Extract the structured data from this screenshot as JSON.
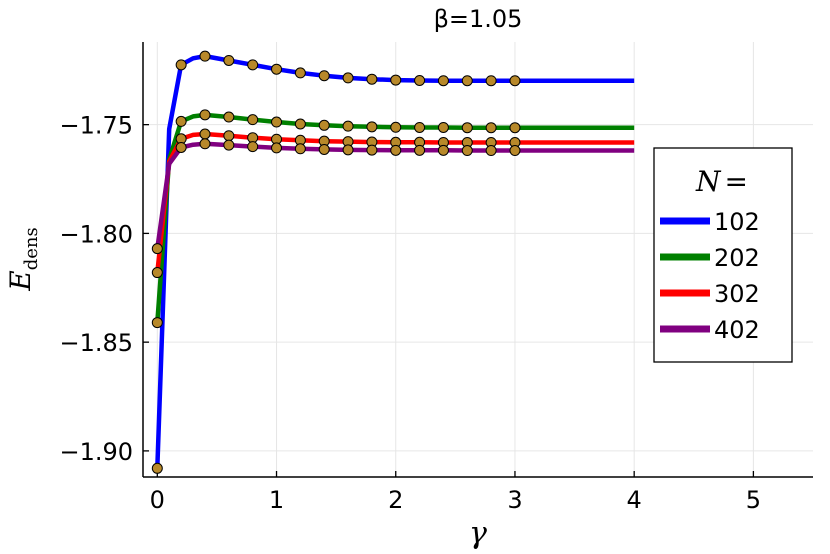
{
  "chart_data": {
    "type": "line",
    "title": "β=1.05",
    "xlabel": "γ",
    "ylabel_main": "E",
    "ylabel_sub": "dens",
    "xlim": [
      -0.12,
      5.5
    ],
    "ylim": [
      -1.912,
      -1.712
    ],
    "xticks": [
      0,
      1,
      2,
      3,
      4,
      5
    ],
    "yticks": [
      -1.9,
      -1.85,
      -1.8,
      -1.75
    ],
    "ytick_labels": [
      "−1.90",
      "−1.85",
      "−1.80",
      "−1.75"
    ],
    "grid": true,
    "legend_title_main": "N",
    "legend_title_suffix": "=",
    "legend_position": "right",
    "marker_color": "#b8892a",
    "series": [
      {
        "name": "102",
        "color": "#0000ff",
        "line_x": [
          0,
          0.1,
          0.2,
          0.3,
          0.4,
          0.6,
          0.8,
          1.0,
          1.2,
          1.4,
          1.6,
          1.8,
          2.0,
          2.2,
          2.4,
          2.6,
          2.8,
          3.0,
          3.5,
          4.0
        ],
        "line_y": [
          -1.908,
          -1.752,
          -1.7225,
          -1.7195,
          -1.7185,
          -1.7205,
          -1.7225,
          -1.7245,
          -1.7262,
          -1.7275,
          -1.7285,
          -1.7291,
          -1.7295,
          -1.7297,
          -1.7298,
          -1.7298,
          -1.7298,
          -1.7298,
          -1.7298,
          -1.7298
        ],
        "marker_x": [
          0,
          0.2,
          0.4,
          0.6,
          0.8,
          1.0,
          1.2,
          1.4,
          1.6,
          1.8,
          2.0,
          2.2,
          2.4,
          2.6,
          2.8,
          3.0
        ],
        "marker_y": [
          -1.908,
          -1.7225,
          -1.7185,
          -1.7205,
          -1.7225,
          -1.7245,
          -1.7262,
          -1.7275,
          -1.7285,
          -1.7291,
          -1.7295,
          -1.7297,
          -1.7298,
          -1.7298,
          -1.7298,
          -1.7298
        ]
      },
      {
        "name": "202",
        "color": "#008000",
        "line_x": [
          0,
          0.1,
          0.2,
          0.3,
          0.4,
          0.6,
          0.8,
          1.0,
          1.2,
          1.4,
          1.6,
          1.8,
          2.0,
          2.2,
          2.4,
          2.6,
          2.8,
          3.0,
          3.5,
          4.0
        ],
        "line_y": [
          -1.841,
          -1.766,
          -1.7485,
          -1.7462,
          -1.7455,
          -1.7465,
          -1.7477,
          -1.7488,
          -1.7497,
          -1.7503,
          -1.7507,
          -1.751,
          -1.7512,
          -1.7513,
          -1.7513,
          -1.7514,
          -1.7514,
          -1.7514,
          -1.7514,
          -1.7514
        ],
        "marker_x": [
          0,
          0.2,
          0.4,
          0.6,
          0.8,
          1.0,
          1.2,
          1.4,
          1.6,
          1.8,
          2.0,
          2.2,
          2.4,
          2.6,
          2.8,
          3.0
        ],
        "marker_y": [
          -1.841,
          -1.7485,
          -1.7455,
          -1.7465,
          -1.7477,
          -1.7488,
          -1.7497,
          -1.7503,
          -1.7507,
          -1.751,
          -1.7512,
          -1.7513,
          -1.7513,
          -1.7514,
          -1.7514,
          -1.7514
        ]
      },
      {
        "name": "302",
        "color": "#ff0000",
        "line_x": [
          0,
          0.1,
          0.2,
          0.3,
          0.4,
          0.6,
          0.8,
          1.0,
          1.2,
          1.4,
          1.6,
          1.8,
          2.0,
          2.2,
          2.4,
          2.6,
          2.8,
          3.0,
          3.5,
          4.0
        ],
        "line_y": [
          -1.818,
          -1.767,
          -1.7565,
          -1.7547,
          -1.7543,
          -1.7551,
          -1.756,
          -1.7567,
          -1.7572,
          -1.7576,
          -1.7578,
          -1.758,
          -1.7581,
          -1.7581,
          -1.7582,
          -1.7582,
          -1.7582,
          -1.7582,
          -1.7582,
          -1.7582
        ],
        "marker_x": [
          0,
          0.2,
          0.4,
          0.6,
          0.8,
          1.0,
          1.2,
          1.4,
          1.6,
          1.8,
          2.0,
          2.2,
          2.4,
          2.6,
          2.8,
          3.0
        ],
        "marker_y": [
          -1.818,
          -1.7565,
          -1.7543,
          -1.7551,
          -1.756,
          -1.7567,
          -1.7572,
          -1.7576,
          -1.7578,
          -1.758,
          -1.7581,
          -1.7581,
          -1.7582,
          -1.7582,
          -1.7582,
          -1.7582
        ]
      },
      {
        "name": "402",
        "color": "#800080",
        "line_x": [
          0,
          0.1,
          0.2,
          0.3,
          0.4,
          0.6,
          0.8,
          1.0,
          1.2,
          1.4,
          1.6,
          1.8,
          2.0,
          2.2,
          2.4,
          2.6,
          2.8,
          3.0,
          3.5,
          4.0
        ],
        "line_y": [
          -1.807,
          -1.768,
          -1.7605,
          -1.7592,
          -1.7588,
          -1.7594,
          -1.7601,
          -1.7607,
          -1.7611,
          -1.7614,
          -1.7616,
          -1.7617,
          -1.7618,
          -1.7618,
          -1.7618,
          -1.7619,
          -1.7619,
          -1.7619,
          -1.7619,
          -1.7619
        ],
        "marker_x": [
          0,
          0.2,
          0.4,
          0.6,
          0.8,
          1.0,
          1.2,
          1.4,
          1.6,
          1.8,
          2.0,
          2.2,
          2.4,
          2.6,
          2.8,
          3.0
        ],
        "marker_y": [
          -1.807,
          -1.7605,
          -1.7588,
          -1.7594,
          -1.7601,
          -1.7607,
          -1.7611,
          -1.7614,
          -1.7616,
          -1.7617,
          -1.7618,
          -1.7618,
          -1.7618,
          -1.7619,
          -1.7619,
          -1.7619
        ]
      }
    ]
  }
}
